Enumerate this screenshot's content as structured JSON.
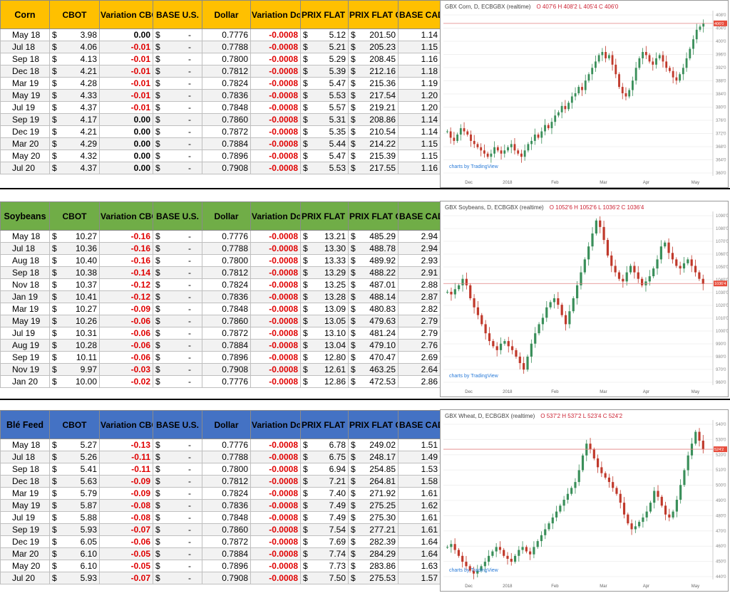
{
  "columns": [
    "CBOT",
    "Variation CBOT",
    "BASE U.S.",
    "Dollar",
    "Variation Dollar",
    "PRIX FLAT CDN$ / BU.",
    "PRIX FLAT CDN$ / MT",
    "BASE CAD"
  ],
  "sections": [
    {
      "name": "Corn",
      "header_color": "#ffc000",
      "rows": [
        [
          "May 18",
          "$",
          "3.98",
          "0.00",
          "$",
          "-",
          "0.7776",
          "-0.0008",
          "$",
          "5.12",
          "$",
          "201.50",
          "1.14"
        ],
        [
          "Jul 18",
          "$",
          "4.06",
          "-0.01",
          "$",
          "-",
          "0.7788",
          "-0.0008",
          "$",
          "5.21",
          "$",
          "205.23",
          "1.15"
        ],
        [
          "Sep 18",
          "$",
          "4.13",
          "-0.01",
          "$",
          "-",
          "0.7800",
          "-0.0008",
          "$",
          "5.29",
          "$",
          "208.45",
          "1.16"
        ],
        [
          "Dec 18",
          "$",
          "4.21",
          "-0.01",
          "$",
          "-",
          "0.7812",
          "-0.0008",
          "$",
          "5.39",
          "$",
          "212.16",
          "1.18"
        ],
        [
          "Mar 19",
          "$",
          "4.28",
          "-0.01",
          "$",
          "-",
          "0.7824",
          "-0.0008",
          "$",
          "5.47",
          "$",
          "215.36",
          "1.19"
        ],
        [
          "May 19",
          "$",
          "4.33",
          "-0.01",
          "$",
          "-",
          "0.7836",
          "-0.0008",
          "$",
          "5.53",
          "$",
          "217.54",
          "1.20"
        ],
        [
          "Jul 19",
          "$",
          "4.37",
          "-0.01",
          "$",
          "-",
          "0.7848",
          "-0.0008",
          "$",
          "5.57",
          "$",
          "219.21",
          "1.20"
        ],
        [
          "Sep 19",
          "$",
          "4.17",
          "0.00",
          "$",
          "-",
          "0.7860",
          "-0.0008",
          "$",
          "5.31",
          "$",
          "208.86",
          "1.14"
        ],
        [
          "Dec 19",
          "$",
          "4.21",
          "0.00",
          "$",
          "-",
          "0.7872",
          "-0.0008",
          "$",
          "5.35",
          "$",
          "210.54",
          "1.14"
        ],
        [
          "Mar 20",
          "$",
          "4.29",
          "0.00",
          "$",
          "-",
          "0.7884",
          "-0.0008",
          "$",
          "5.44",
          "$",
          "214.22",
          "1.15"
        ],
        [
          "May 20",
          "$",
          "4.32",
          "0.00",
          "$",
          "-",
          "0.7896",
          "-0.0008",
          "$",
          "5.47",
          "$",
          "215.39",
          "1.15"
        ],
        [
          "Jul 20",
          "$",
          "4.37",
          "0.00",
          "$",
          "-",
          "0.7908",
          "-0.0008",
          "$",
          "5.53",
          "$",
          "217.55",
          "1.16"
        ]
      ],
      "chart": {
        "title": "GBX Corn, D, ECBGBX (realtime)",
        "ohlc": "O 407'6 H 408'2 L 405'4 C 406'0",
        "price_tag": "406'0",
        "logo": "charts by TradingView",
        "y_ticks": [
          "408'0",
          "404'0",
          "400'0",
          "396'0",
          "392'0",
          "388'0",
          "384'0",
          "380'0",
          "376'0",
          "372'0",
          "368'0",
          "364'0",
          "360'0"
        ],
        "x_ticks": [
          "Dec",
          "2018",
          "Feb",
          "Mar",
          "Apr",
          "May"
        ]
      },
      "chart_data": {
        "type": "candlestick",
        "title": "GBX Corn, D, ECBGBX (realtime)",
        "ylim": [
          358,
          410
        ],
        "last": 406.0,
        "close_path": [
          372,
          370,
          369,
          371,
          373,
          372,
          371,
          369,
          368,
          367,
          366,
          365,
          364,
          365,
          367,
          366,
          365,
          366,
          367,
          368,
          366,
          365,
          364,
          366,
          368,
          369,
          371,
          370,
          372,
          374,
          373,
          375,
          377,
          378,
          380,
          379,
          381,
          383,
          384,
          386,
          385,
          388,
          390,
          392,
          394,
          396,
          397,
          395,
          396,
          393,
          390,
          386,
          384,
          383,
          385,
          388,
          392,
          395,
          397,
          396,
          394,
          393,
          395,
          396,
          394,
          392,
          391,
          389,
          388,
          390,
          392,
          395,
          398,
          401,
          404,
          405,
          406
        ]
      }
    },
    {
      "name": "Soybeans",
      "header_color": "#70ad47",
      "rows": [
        [
          "May 18",
          "$",
          "10.27",
          "-0.16",
          "$",
          "-",
          "0.7776",
          "-0.0008",
          "$",
          "13.21",
          "$",
          "485.29",
          "2.94"
        ],
        [
          "Jul 18",
          "$",
          "10.36",
          "-0.16",
          "$",
          "-",
          "0.7788",
          "-0.0008",
          "$",
          "13.30",
          "$",
          "488.78",
          "2.94"
        ],
        [
          "Aug 18",
          "$",
          "10.40",
          "-0.16",
          "$",
          "-",
          "0.7800",
          "-0.0008",
          "$",
          "13.33",
          "$",
          "489.92",
          "2.93"
        ],
        [
          "Sep 18",
          "$",
          "10.38",
          "-0.14",
          "$",
          "-",
          "0.7812",
          "-0.0008",
          "$",
          "13.29",
          "$",
          "488.22",
          "2.91"
        ],
        [
          "Nov 18",
          "$",
          "10.37",
          "-0.12",
          "$",
          "-",
          "0.7824",
          "-0.0008",
          "$",
          "13.25",
          "$",
          "487.01",
          "2.88"
        ],
        [
          "Jan 19",
          "$",
          "10.41",
          "-0.12",
          "$",
          "-",
          "0.7836",
          "-0.0008",
          "$",
          "13.28",
          "$",
          "488.14",
          "2.87"
        ],
        [
          "Mar 19",
          "$",
          "10.27",
          "-0.09",
          "$",
          "-",
          "0.7848",
          "-0.0008",
          "$",
          "13.09",
          "$",
          "480.83",
          "2.82"
        ],
        [
          "May 19",
          "$",
          "10.26",
          "-0.06",
          "$",
          "-",
          "0.7860",
          "-0.0008",
          "$",
          "13.05",
          "$",
          "479.63",
          "2.79"
        ],
        [
          "Jul 19",
          "$",
          "10.31",
          "-0.06",
          "$",
          "-",
          "0.7872",
          "-0.0008",
          "$",
          "13.10",
          "$",
          "481.24",
          "2.79"
        ],
        [
          "Aug 19",
          "$",
          "10.28",
          "-0.06",
          "$",
          "-",
          "0.7884",
          "-0.0008",
          "$",
          "13.04",
          "$",
          "479.10",
          "2.76"
        ],
        [
          "Sep 19",
          "$",
          "10.11",
          "-0.06",
          "$",
          "-",
          "0.7896",
          "-0.0008",
          "$",
          "12.80",
          "$",
          "470.47",
          "2.69"
        ],
        [
          "Nov 19",
          "$",
          "9.97",
          "-0.03",
          "$",
          "-",
          "0.7908",
          "-0.0008",
          "$",
          "12.61",
          "$",
          "463.25",
          "2.64"
        ],
        [
          "Jan 20",
          "$",
          "10.00",
          "-0.02",
          "$",
          "-",
          "0.7776",
          "-0.0008",
          "$",
          "12.86",
          "$",
          "472.53",
          "2.86"
        ]
      ],
      "chart": {
        "title": "GBX Soybeans, D, ECBGBX (realtime)",
        "ohlc": "O 1052'6 H 1052'6 L 1036'2 C 1036'4",
        "price_tag": "1036'4",
        "logo": "charts by TradingView",
        "y_ticks": [
          "1090'0",
          "1080'0",
          "1070'0",
          "1060'0",
          "1050'0",
          "1040'0",
          "1030'0",
          "1020'0",
          "1010'0",
          "1000'0",
          "990'0",
          "980'0",
          "970'0",
          "960'0"
        ],
        "x_ticks": [
          "Dec",
          "2018",
          "Feb",
          "Mar",
          "Apr",
          "May"
        ]
      },
      "chart_data": {
        "type": "candlestick",
        "title": "GBX Soybeans, D, ECBGBX (realtime)",
        "ylim": [
          958,
          1092
        ],
        "last": 1036.4,
        "close_path": [
          1030,
          1028,
          1032,
          1035,
          1040,
          1035,
          1025,
          1018,
          1012,
          1005,
          998,
          992,
          988,
          985,
          990,
          992,
          988,
          985,
          980,
          975,
          970,
          980,
          990,
          998,
          1005,
          1010,
          1018,
          1022,
          1025,
          1020,
          1012,
          1005,
          1015,
          1025,
          1035,
          1045,
          1055,
          1065,
          1075,
          1085,
          1080,
          1070,
          1058,
          1050,
          1045,
          1040,
          1038,
          1045,
          1050,
          1045,
          1040,
          1035,
          1038,
          1042,
          1048,
          1055,
          1065,
          1068,
          1060,
          1055,
          1050,
          1048,
          1052,
          1055,
          1050,
          1045,
          1040,
          1036
        ]
      }
    },
    {
      "name": "Blé Feed",
      "header_color": "#4472c4",
      "rows": [
        [
          "May 18",
          "$",
          "5.27",
          "-0.13",
          "$",
          "-",
          "0.7776",
          "-0.0008",
          "$",
          "6.78",
          "$",
          "249.02",
          "1.51"
        ],
        [
          "Jul 18",
          "$",
          "5.26",
          "-0.11",
          "$",
          "-",
          "0.7788",
          "-0.0008",
          "$",
          "6.75",
          "$",
          "248.17",
          "1.49"
        ],
        [
          "Sep 18",
          "$",
          "5.41",
          "-0.11",
          "$",
          "-",
          "0.7800",
          "-0.0008",
          "$",
          "6.94",
          "$",
          "254.85",
          "1.53"
        ],
        [
          "Dec 18",
          "$",
          "5.63",
          "-0.09",
          "$",
          "-",
          "0.7812",
          "-0.0008",
          "$",
          "7.21",
          "$",
          "264.81",
          "1.58"
        ],
        [
          "Mar 19",
          "$",
          "5.79",
          "-0.09",
          "$",
          "-",
          "0.7824",
          "-0.0008",
          "$",
          "7.40",
          "$",
          "271.92",
          "1.61"
        ],
        [
          "May 19",
          "$",
          "5.87",
          "-0.08",
          "$",
          "-",
          "0.7836",
          "-0.0008",
          "$",
          "7.49",
          "$",
          "275.25",
          "1.62"
        ],
        [
          "Jul 19",
          "$",
          "5.88",
          "-0.08",
          "$",
          "-",
          "0.7848",
          "-0.0008",
          "$",
          "7.49",
          "$",
          "275.30",
          "1.61"
        ],
        [
          "Sep 19",
          "$",
          "5.93",
          "-0.07",
          "$",
          "-",
          "0.7860",
          "-0.0008",
          "$",
          "7.54",
          "$",
          "277.21",
          "1.61"
        ],
        [
          "Dec 19",
          "$",
          "6.05",
          "-0.06",
          "$",
          "-",
          "0.7872",
          "-0.0008",
          "$",
          "7.69",
          "$",
          "282.39",
          "1.64"
        ],
        [
          "Mar 20",
          "$",
          "6.10",
          "-0.05",
          "$",
          "-",
          "0.7884",
          "-0.0008",
          "$",
          "7.74",
          "$",
          "284.29",
          "1.64"
        ],
        [
          "May 20",
          "$",
          "6.10",
          "-0.05",
          "$",
          "-",
          "0.7896",
          "-0.0008",
          "$",
          "7.73",
          "$",
          "283.86",
          "1.63"
        ],
        [
          "Jul 20",
          "$",
          "5.93",
          "-0.07",
          "$",
          "-",
          "0.7908",
          "-0.0008",
          "$",
          "7.50",
          "$",
          "275.53",
          "1.57"
        ]
      ],
      "chart": {
        "title": "GBX Wheat, D, ECBGBX (realtime)",
        "ohlc": "O 537'2 H 537'2 L 523'4 C 524'2",
        "price_tag": "524'2",
        "logo": "charts by TradingView",
        "y_ticks": [
          "540'0",
          "530'0",
          "520'0",
          "510'0",
          "500'0",
          "490'0",
          "480'0",
          "470'0",
          "460'0",
          "450'0",
          "440'0"
        ],
        "x_ticks": [
          "Dec",
          "2018",
          "Feb",
          "Mar",
          "Apr",
          "May"
        ]
      },
      "chart_data": {
        "type": "candlestick",
        "title": "GBX Wheat, D, ECBGBX (realtime)",
        "ylim": [
          436,
          544
        ],
        "last": 524.2,
        "close_path": [
          458,
          460,
          456,
          452,
          448,
          445,
          442,
          440,
          442,
          445,
          448,
          452,
          455,
          458,
          456,
          452,
          450,
          448,
          452,
          456,
          458,
          455,
          453,
          458,
          462,
          466,
          470,
          474,
          478,
          482,
          486,
          490,
          494,
          498,
          502,
          510,
          520,
          528,
          524,
          518,
          512,
          508,
          505,
          502,
          498,
          494,
          488,
          480,
          474,
          470,
          472,
          475,
          478,
          482,
          488,
          496,
          492,
          486,
          480,
          478,
          482,
          490,
          500,
          510,
          520,
          528,
          536,
          530,
          524
        ]
      }
    }
  ]
}
